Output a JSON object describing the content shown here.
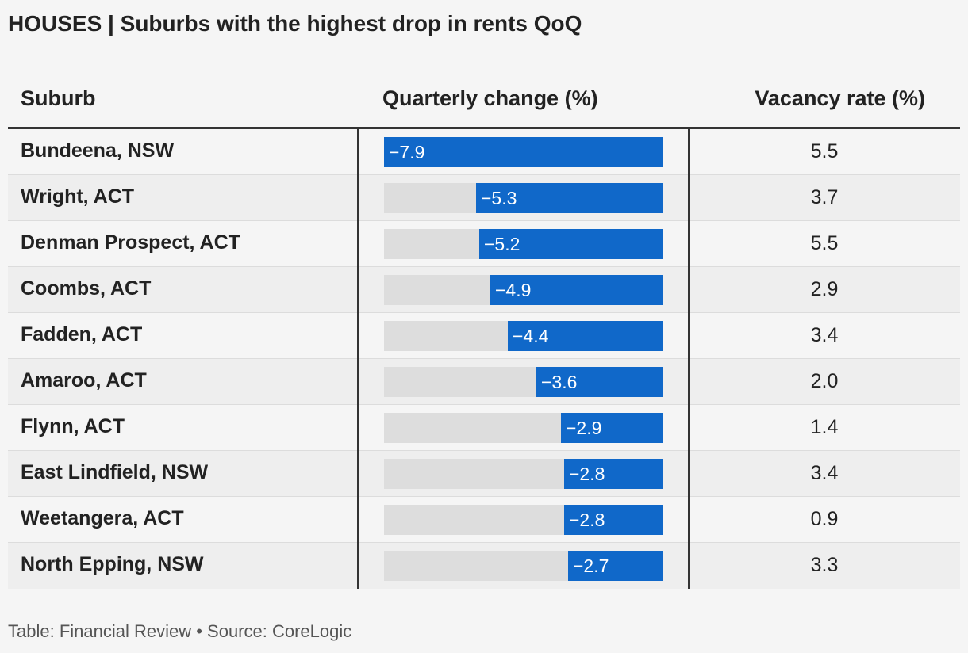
{
  "title": "HOUSES | Suburbs with the highest drop in rents QoQ",
  "columns": {
    "suburb": "Suburb",
    "change": "Quarterly change (%)",
    "vacancy": "Vacancy rate (%)"
  },
  "footer": "Table: Financial Review • Source: CoreLogic",
  "colors": {
    "bar": "#1068c9",
    "track": "#dddddd"
  },
  "chart_data": {
    "type": "table",
    "title": "HOUSES | Suburbs with the highest drop in rents QoQ",
    "bar_max_abs": 7.9,
    "rows": [
      {
        "suburb": "Bundeena, NSW",
        "change": -7.9,
        "change_label": "−7.9",
        "vacancy": "5.5"
      },
      {
        "suburb": "Wright, ACT",
        "change": -5.3,
        "change_label": "−5.3",
        "vacancy": "3.7"
      },
      {
        "suburb": "Denman Prospect, ACT",
        "change": -5.2,
        "change_label": "−5.2",
        "vacancy": "5.5"
      },
      {
        "suburb": "Coombs, ACT",
        "change": -4.9,
        "change_label": "−4.9",
        "vacancy": "2.9"
      },
      {
        "suburb": "Fadden, ACT",
        "change": -4.4,
        "change_label": "−4.4",
        "vacancy": "3.4"
      },
      {
        "suburb": "Amaroo, ACT",
        "change": -3.6,
        "change_label": "−3.6",
        "vacancy": "2.0"
      },
      {
        "suburb": "Flynn, ACT",
        "change": -2.9,
        "change_label": "−2.9",
        "vacancy": "1.4"
      },
      {
        "suburb": "East Lindfield, NSW",
        "change": -2.8,
        "change_label": "−2.8",
        "vacancy": "3.4"
      },
      {
        "suburb": "Weetangera, ACT",
        "change": -2.8,
        "change_label": "−2.8",
        "vacancy": "0.9"
      },
      {
        "suburb": "North Epping, NSW",
        "change": -2.7,
        "change_label": "−2.7",
        "vacancy": "3.3"
      }
    ]
  }
}
